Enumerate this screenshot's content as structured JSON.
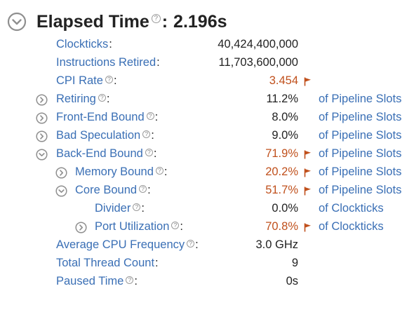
{
  "header": {
    "title": "Elapsed Time",
    "value": "2.196s",
    "help_glyph": "?",
    "toggle_icon": "chevron-down-circle-icon"
  },
  "colors": {
    "label_blue": "#3a6fb5",
    "hot_value": "#c0501c",
    "flag": "#c0501c",
    "text": "#222222",
    "icon_grey": "#8f8f8f"
  },
  "metrics": {
    "clockticks": {
      "label": "Clockticks",
      "value": "40,424,400,000"
    },
    "instructions_retired": {
      "label": "Instructions Retired",
      "value": "11,703,600,000"
    },
    "cpi_rate": {
      "label": "CPI Rate",
      "value": "3.454",
      "flagged": true
    },
    "retiring": {
      "label": "Retiring",
      "value": "11.2%",
      "unit": "of Pipeline Slots",
      "expander": "chevron-right-circle-icon"
    },
    "front_end_bound": {
      "label": "Front-End Bound",
      "value": "8.0%",
      "unit": "of Pipeline Slots",
      "expander": "chevron-right-circle-icon"
    },
    "bad_speculation": {
      "label": "Bad Speculation",
      "value": "9.0%",
      "unit": "of Pipeline Slots",
      "expander": "chevron-right-circle-icon"
    },
    "back_end_bound": {
      "label": "Back-End Bound",
      "value": "71.9%",
      "unit": "of Pipeline Slots",
      "flagged": true,
      "expander": "chevron-down-circle-icon"
    },
    "memory_bound": {
      "label": "Memory Bound",
      "value": "20.2%",
      "unit": "of Pipeline Slots",
      "flagged": true,
      "expander": "chevron-right-circle-icon"
    },
    "core_bound": {
      "label": "Core Bound",
      "value": "51.7%",
      "unit": "of Pipeline Slots",
      "flagged": true,
      "expander": "chevron-down-circle-icon"
    },
    "divider": {
      "label": "Divider",
      "value": "0.0%",
      "unit": "of Clockticks"
    },
    "port_utilization": {
      "label": "Port Utilization",
      "value": "70.8%",
      "unit": "of Clockticks",
      "flagged": true,
      "expander": "chevron-right-circle-icon"
    },
    "avg_cpu_freq": {
      "label": "Average CPU Frequency",
      "value": "3.0 GHz"
    },
    "total_thread_count": {
      "label": "Total Thread Count",
      "value": "9"
    },
    "paused_time": {
      "label": "Paused Time",
      "value": "0s"
    }
  },
  "punct": {
    "colon": ":",
    "help": "?"
  }
}
